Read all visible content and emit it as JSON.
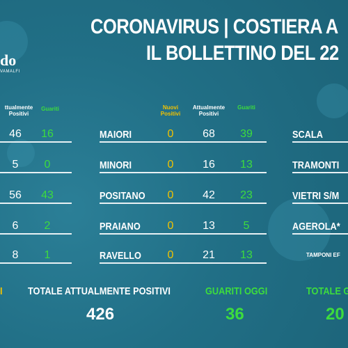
{
  "header": {
    "title_line1": "CORONAVIRUS | COSTIERA A",
    "title_line2": "IL BOLLETTINO DEL 22"
  },
  "logo": {
    "text": "do",
    "sub": "VAMALFI"
  },
  "columns": {
    "nuovi_positivi": "Nuovi Positivi",
    "attualmente_positivi": "Attualmente Positivi",
    "guariti": "Guariti",
    "left_attualmente": "ttualmente Positivi"
  },
  "left_rows": [
    {
      "attualmente": "46",
      "guariti": "16"
    },
    {
      "attualmente": "5",
      "guariti": "0"
    },
    {
      "attualmente": "56",
      "guariti": "43"
    },
    {
      "attualmente": "6",
      "guariti": "2"
    },
    {
      "attualmente": "8",
      "guariti": "1"
    }
  ],
  "middle_rows": [
    {
      "comune": "MAIORI",
      "nuovi": "0",
      "attualmente": "68",
      "guariti": "39"
    },
    {
      "comune": "MINORI",
      "nuovi": "0",
      "attualmente": "16",
      "guariti": "13"
    },
    {
      "comune": "POSITANO",
      "nuovi": "0",
      "attualmente": "42",
      "guariti": "23"
    },
    {
      "comune": "PRAIANO",
      "nuovi": "0",
      "attualmente": "13",
      "guariti": "5"
    },
    {
      "comune": "RAVELLO",
      "nuovi": "0",
      "attualmente": "21",
      "guariti": "13"
    }
  ],
  "right_rows": [
    {
      "comune": "SCALA"
    },
    {
      "comune": "TRAMONTI"
    },
    {
      "comune": "VIETRI S/M"
    },
    {
      "comune": "AGEROLA*"
    }
  ],
  "tamponi_note": "TAMPONI EF",
  "totals": {
    "left_fragment": "I",
    "attualmente_label": "TOTALE ATTUALMENTE POSITIVI",
    "attualmente_value": "426",
    "guariti_oggi_label": "GUARITI OGGI",
    "guariti_oggi_value": "36",
    "totale_guariti_label": "TOTALE G",
    "totale_guariti_value": "20"
  },
  "colors": {
    "background": "#1f6f86",
    "green": "#3ddc3d",
    "yellow": "#f2c200"
  }
}
